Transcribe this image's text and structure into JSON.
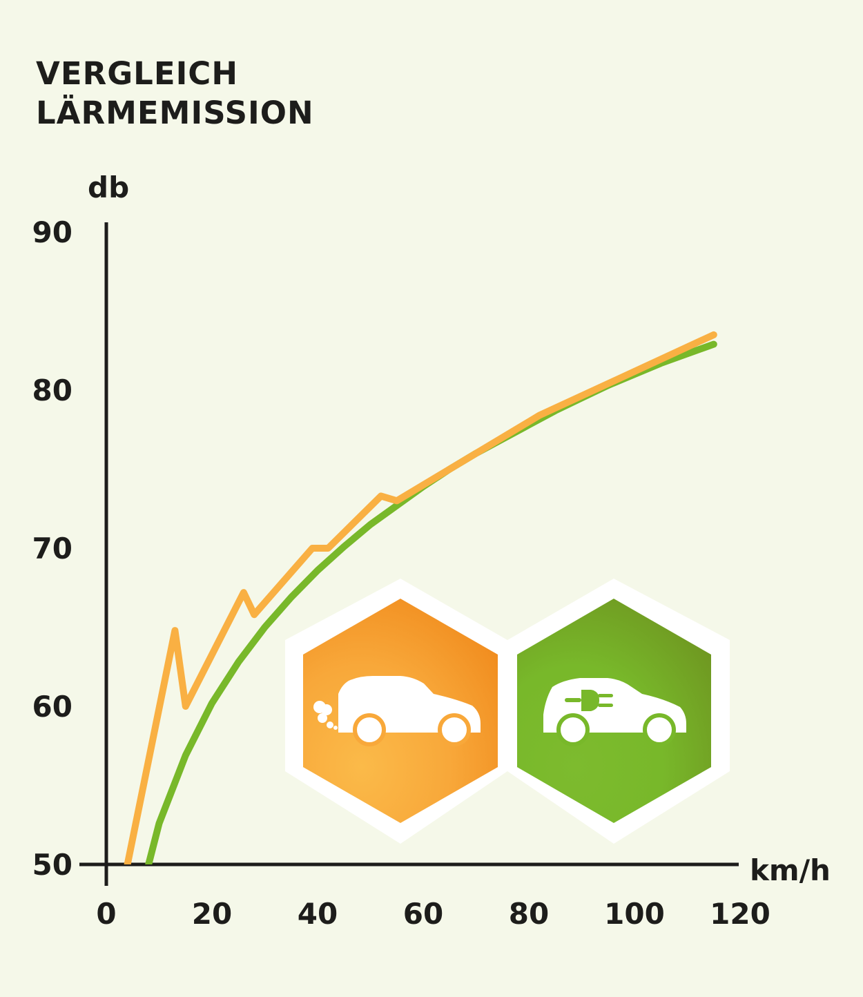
{
  "title_lines": [
    "VERGLEICH",
    "LÄRMEMISSION"
  ],
  "chart_data": {
    "type": "line",
    "title": "VERGLEICH LÄRMEMISSION",
    "xlabel": "km/h",
    "ylabel": "db",
    "xlim": [
      0,
      120
    ],
    "ylim": [
      50,
      90
    ],
    "x_ticks": [
      0,
      20,
      40,
      60,
      80,
      100,
      120
    ],
    "y_ticks": [
      50,
      60,
      70,
      80,
      90
    ],
    "grid": false,
    "legend": "icons inside plot, lower right",
    "series": [
      {
        "color": "#f9b043",
        "icon": "combustion-car-icon",
        "x": [
          4,
          13,
          15,
          26,
          28,
          39,
          42,
          52,
          55,
          82,
          115
        ],
        "y": [
          50,
          64.8,
          60,
          67.2,
          65.8,
          70,
          70,
          73.3,
          73,
          78.4,
          83.5
        ]
      },
      {
        "color": "#78b82a",
        "icon": "electric-car-icon",
        "x": [
          8,
          10,
          15,
          20,
          25,
          30,
          35,
          40,
          45,
          50,
          55,
          60,
          65,
          70,
          75,
          80,
          85,
          90,
          95,
          100,
          105,
          110,
          115
        ],
        "y": [
          50,
          52.6,
          56.9,
          60.2,
          62.8,
          65,
          66.9,
          68.6,
          70.1,
          71.5,
          72.7,
          73.9,
          75,
          76,
          76.9,
          77.8,
          78.7,
          79.5,
          80.3,
          81,
          81.7,
          82.3,
          82.9
        ]
      }
    ]
  },
  "colors": {
    "background": "#f5f8e9",
    "text": "#1d1d1b",
    "orange": "#f9b043",
    "green": "#78b82a"
  }
}
